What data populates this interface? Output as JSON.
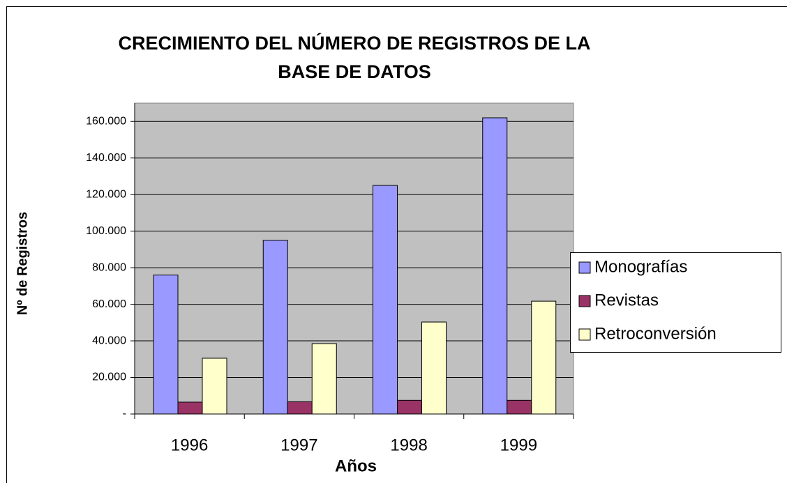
{
  "chart_data": {
    "type": "bar",
    "title": [
      "CRECIMIENTO DEL NÚMERO DE REGISTROS DE LA",
      "BASE DE DATOS"
    ],
    "x_label": "Años",
    "y_label": "Nº de Registros",
    "categories": [
      "1996",
      "1997",
      "1998",
      "1999"
    ],
    "series": [
      {
        "name": "Monografías",
        "color": "#9999ff",
        "values": [
          76000,
          95000,
          125000,
          162000
        ]
      },
      {
        "name": "Revistas",
        "color": "#993366",
        "values": [
          6500,
          6700,
          7500,
          7500
        ]
      },
      {
        "name": "Retroconversión",
        "color": "#ffffcc",
        "values": [
          30500,
          38500,
          50300,
          61700
        ]
      }
    ],
    "ylim": [
      0,
      170000
    ],
    "yticks": [
      {
        "value": 0,
        "label": "-"
      },
      {
        "value": 20000,
        "label": "20.000"
      },
      {
        "value": 40000,
        "label": "40.000"
      },
      {
        "value": 60000,
        "label": "60.000"
      },
      {
        "value": 80000,
        "label": "80.000"
      },
      {
        "value": 100000,
        "label": "100.000"
      },
      {
        "value": 120000,
        "label": "120.000"
      },
      {
        "value": 140000,
        "label": "140.000"
      },
      {
        "value": 160000,
        "label": "160.000"
      }
    ],
    "grid": true,
    "plot_background": "#c0c0c0",
    "legend": "right"
  }
}
